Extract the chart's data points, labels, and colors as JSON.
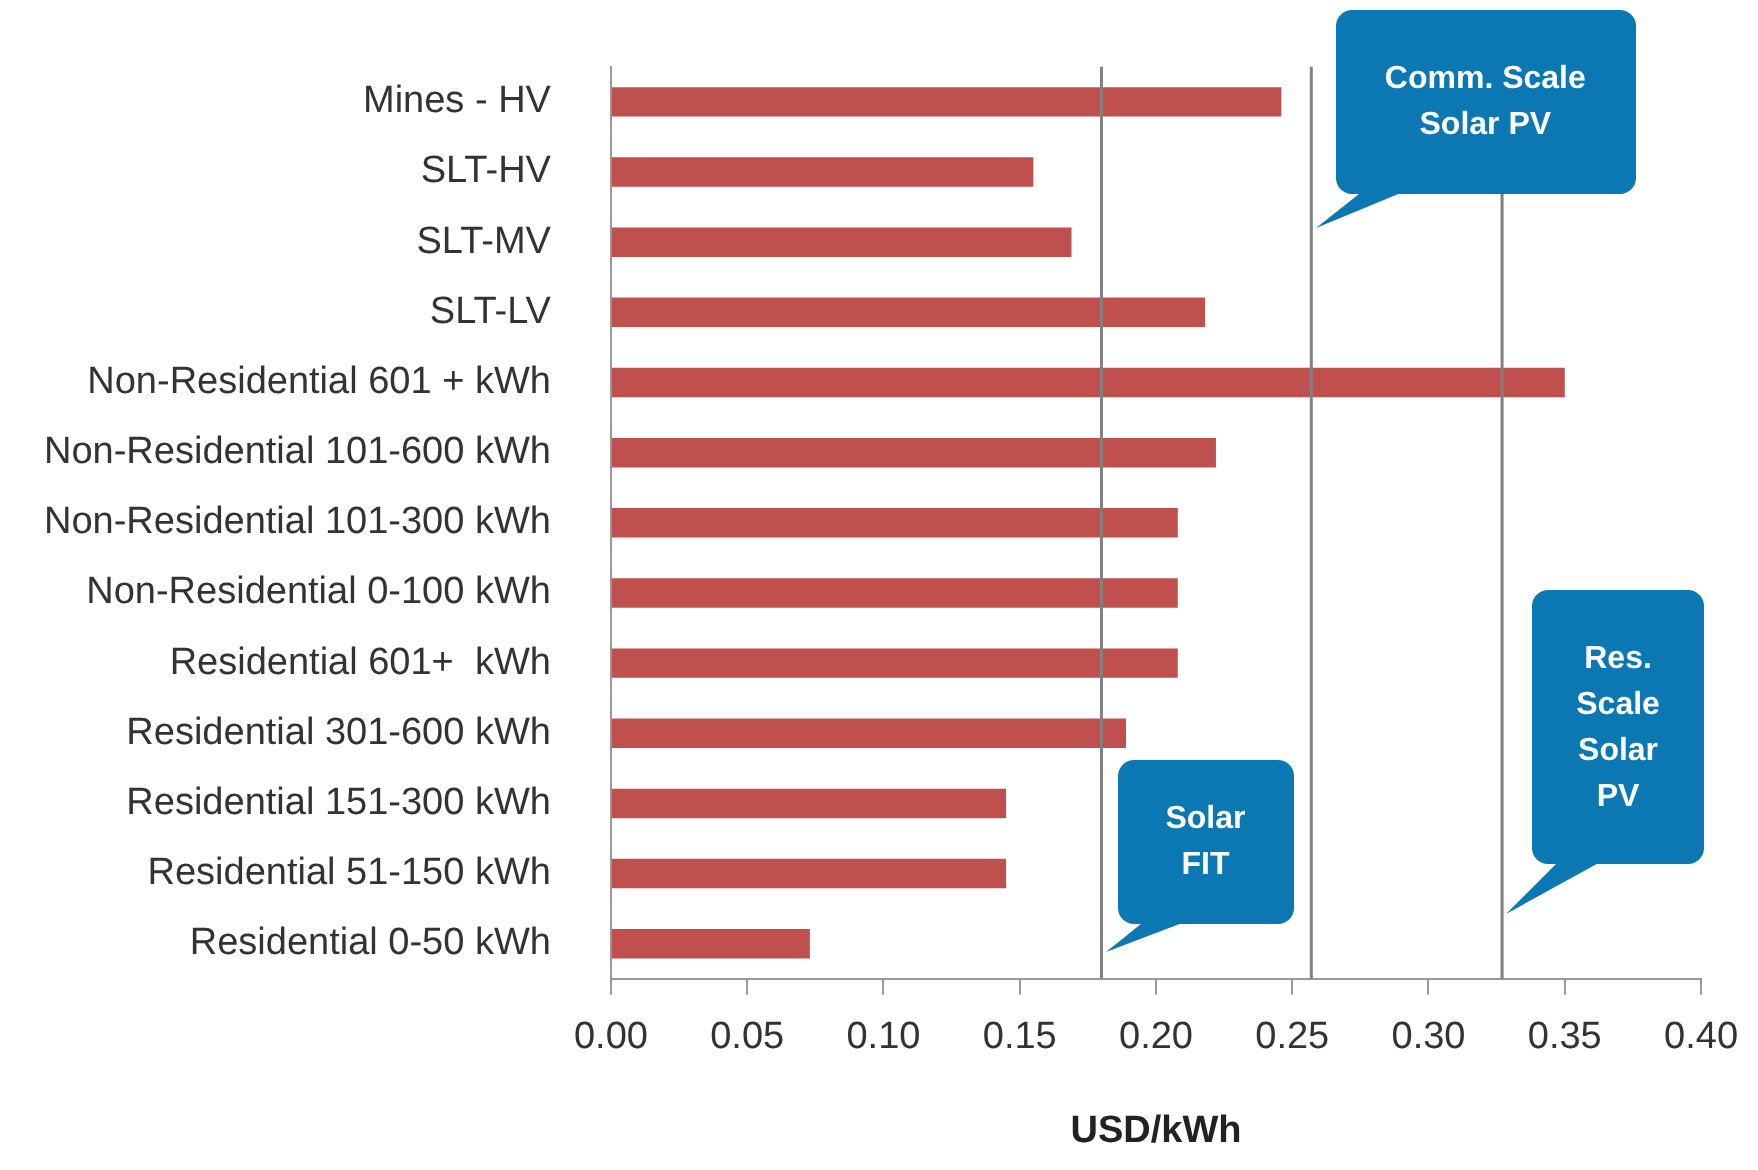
{
  "chart_data": {
    "type": "bar",
    "orientation": "horizontal",
    "xlabel": "USD/kWh",
    "categories": [
      "Mines - HV",
      "SLT-HV",
      "SLT-MV",
      "SLT-LV",
      "Non-Residential 601 + kWh",
      "Non-Residential 101-600 kWh",
      "Non-Residential 101-300 kWh",
      "Non-Residential 0-100 kWh",
      "Residential 601+  kWh",
      "Residential 301-600 kWh",
      "Residential 151-300 kWh",
      "Residential 51-150 kWh",
      "Residential 0-50 kWh"
    ],
    "values": [
      0.246,
      0.155,
      0.169,
      0.218,
      0.35,
      0.222,
      0.208,
      0.208,
      0.208,
      0.189,
      0.145,
      0.145,
      0.073
    ],
    "color": "#c0504d",
    "xlim": [
      0,
      0.4
    ],
    "xticks": [
      {
        "value": 0,
        "label": "0.00"
      },
      {
        "value": 0.05,
        "label": "0.05"
      },
      {
        "value": 0.1,
        "label": "0.10"
      },
      {
        "value": 0.15,
        "label": "0.15"
      },
      {
        "value": 0.2,
        "label": "0.20"
      },
      {
        "value": 0.25,
        "label": "0.25"
      },
      {
        "value": 0.3,
        "label": "0.30"
      },
      {
        "value": 0.35,
        "label": "0.35"
      },
      {
        "value": 0.4,
        "label": "0.40"
      }
    ],
    "grid": false,
    "legend": false,
    "ref_lines": [
      {
        "axis": "x",
        "value": 0.18,
        "label": "Solar\nFIT",
        "color": "#808080"
      },
      {
        "axis": "x",
        "value": 0.257,
        "label": "Comm. Scale\nSolar PV",
        "color": "#808080"
      },
      {
        "axis": "x",
        "value": 0.327,
        "label": "Res.\nScale\nSolar\nPV",
        "color": "#808080"
      }
    ]
  }
}
